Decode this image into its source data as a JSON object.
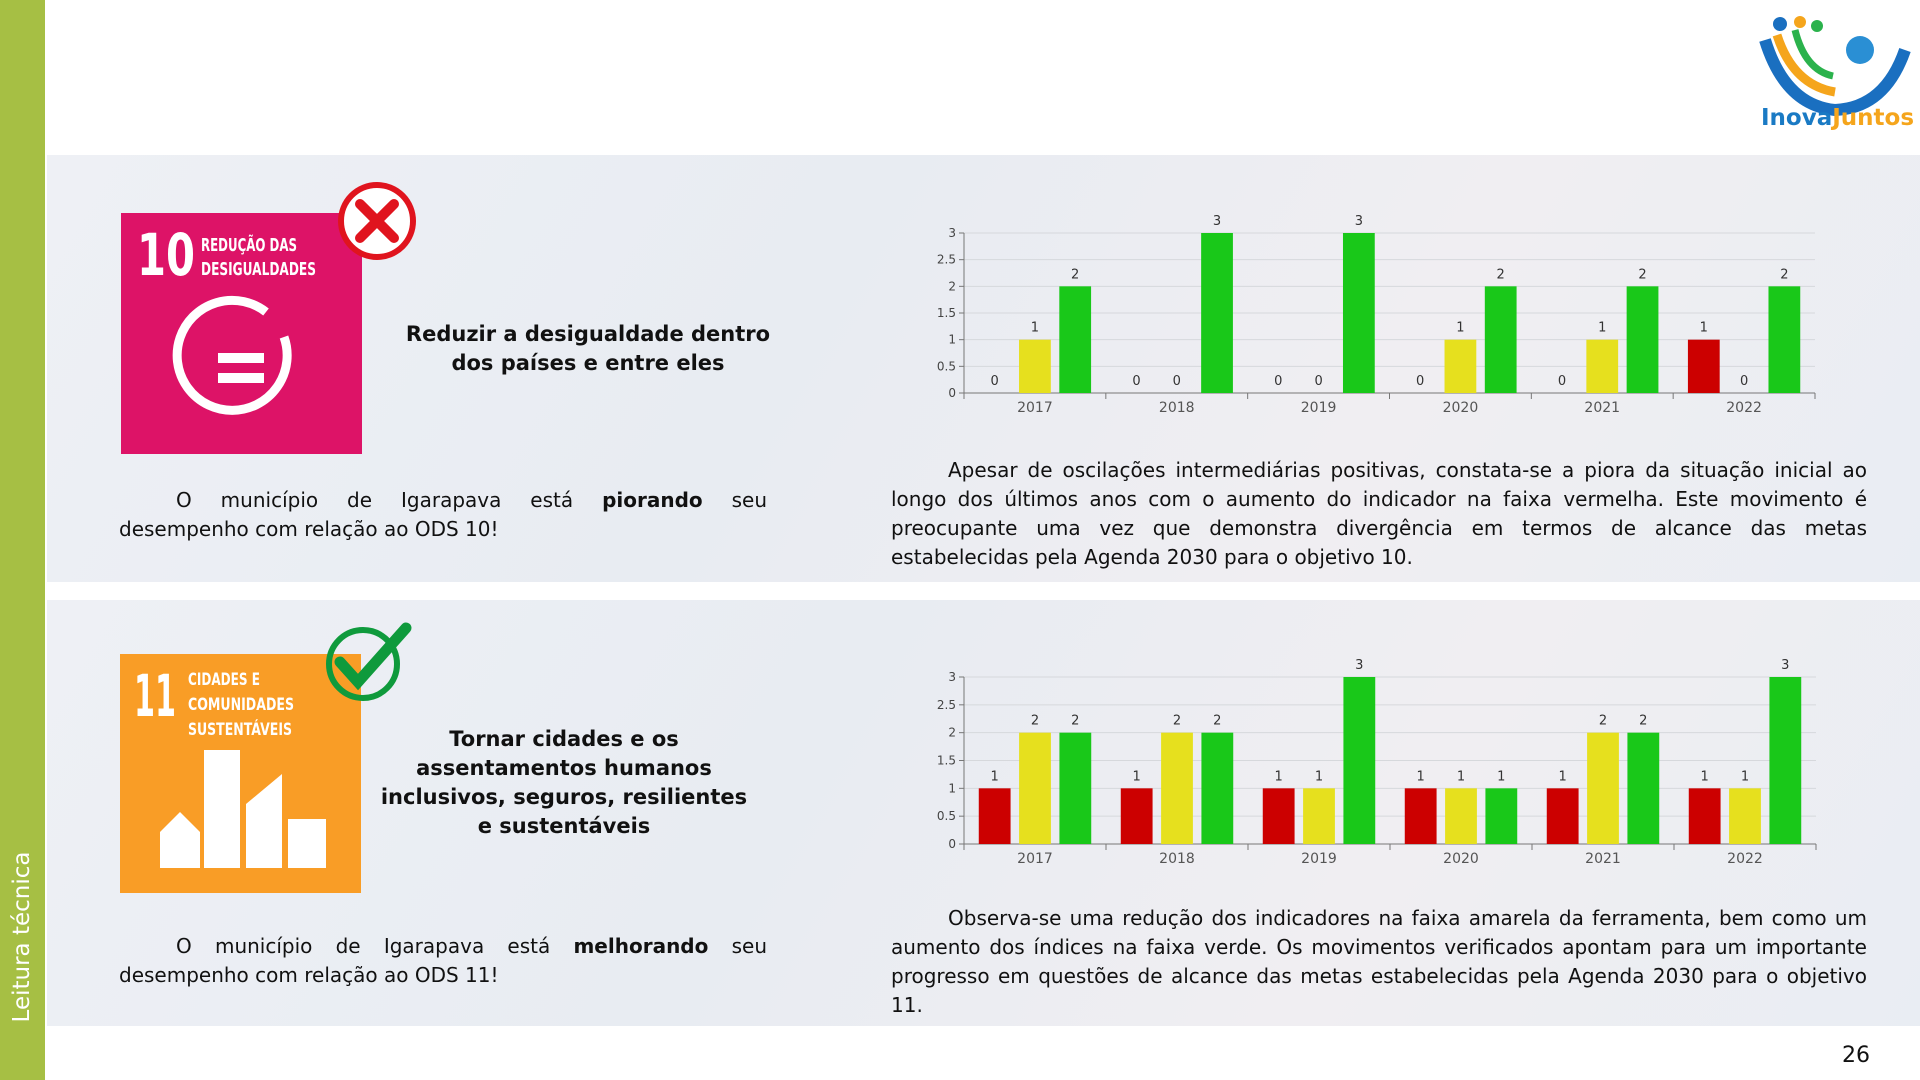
{
  "sidebar": {
    "label": "Leitura técnica"
  },
  "logo": {
    "part1": "Inova",
    "part2": "Juntos"
  },
  "page_number": "26",
  "sections": [
    {
      "icon": {
        "number": "10",
        "label_lines": [
          "REDUÇÃO DAS",
          "DESIGUALDADES"
        ]
      },
      "goal_title": "Reduzir a desigualdade dentro dos países e entre eles",
      "status_text": {
        "before": "O município de Igarapava está ",
        "emphasis": "piorando",
        "after": " seu desempenho com relação ao ODS 10!"
      },
      "analysis": "Apesar de oscilações intermediárias positivas, constata-se a piora da situação inicial ao longo dos últimos anos com o aumento do indicador na faixa vermelha. Este movimento é preocupante uma vez que demonstra divergência em termos de alcance das metas estabelecidas pela Agenda 2030 para o objetivo 10."
    },
    {
      "icon": {
        "number": "11",
        "label_lines": [
          "CIDADES E",
          "COMUNIDADES",
          "SUSTENTÁVEIS"
        ]
      },
      "goal_title": "Tornar cidades e os assentamentos humanos inclusivos, seguros, resilientes e sustentáveis",
      "status_text": {
        "before": "O município de Igarapava está ",
        "emphasis": "melhorando",
        "after": " seu desempenho com relação ao ODS 11!"
      },
      "analysis": "Observa-se uma redução dos indicadores na faixa amarela da ferramenta, bem como um aumento dos índices na faixa verde. Os movimentos verificados apontam para um importante progresso em questões de alcance das metas estabelecidas pela Agenda 2030 para o objetivo 11."
    }
  ],
  "chart_data": [
    {
      "type": "bar",
      "categories": [
        "2017",
        "2018",
        "2019",
        "2020",
        "2021",
        "2022"
      ],
      "series": [
        {
          "color": "#cc0000",
          "values": [
            0,
            0,
            0,
            0,
            0,
            1
          ]
        },
        {
          "color": "#e6e01e",
          "values": [
            1,
            0,
            0,
            1,
            1,
            0
          ]
        },
        {
          "color": "#19c819",
          "values": [
            2,
            3,
            3,
            2,
            2,
            2
          ]
        }
      ],
      "ylim": [
        0,
        3
      ],
      "yticks": [
        0,
        0.5,
        1,
        1.5,
        2,
        2.5,
        3
      ],
      "grid": true,
      "data_labels": true
    },
    {
      "type": "bar",
      "categories": [
        "2017",
        "2018",
        "2019",
        "2020",
        "2021",
        "2022"
      ],
      "series": [
        {
          "color": "#cc0000",
          "values": [
            1,
            1,
            1,
            1,
            1,
            1
          ]
        },
        {
          "color": "#e6e01e",
          "values": [
            2,
            2,
            1,
            1,
            2,
            1
          ]
        },
        {
          "color": "#19c819",
          "values": [
            2,
            2,
            3,
            1,
            2,
            3
          ]
        }
      ],
      "ylim": [
        0,
        3
      ],
      "yticks": [
        0,
        0.5,
        1,
        1.5,
        2,
        2.5,
        3
      ],
      "grid": true,
      "data_labels": true
    }
  ]
}
